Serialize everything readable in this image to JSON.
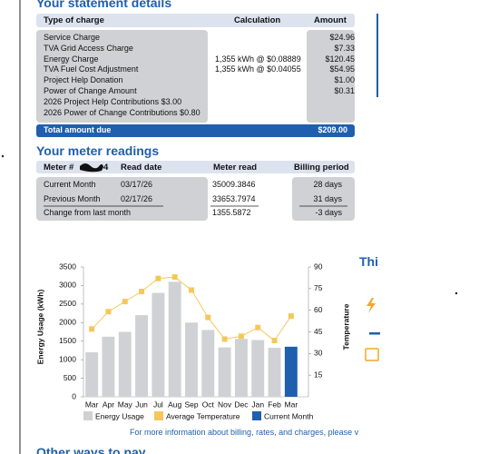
{
  "statement": {
    "title": "Your statement details",
    "headers": [
      "Type of charge",
      "Calculation",
      "Amount"
    ],
    "rows": [
      {
        "type": "Service Charge",
        "amount": "$24.96"
      },
      {
        "type": "TVA Grid Access Charge",
        "amount": "$7.33"
      },
      {
        "type": "Energy Charge",
        "calculation": "1,355 kWh @ $0.08889",
        "amount": "$120.45"
      },
      {
        "type": "TVA Fuel Cost Adjustment",
        "calculation": "1,355 kWh @ $0.04055",
        "amount": "$54.95"
      },
      {
        "type": "Project Help Donation",
        "amount": "$1.00"
      },
      {
        "type": "Power of Change Amount",
        "amount": "$0.31"
      },
      {
        "type": "2026 Project Help Contributions $3.00"
      },
      {
        "type": "2026 Power of Change Contributions $0.80"
      }
    ],
    "total": {
      "label": "Total amount due",
      "amount": "$209.00"
    }
  },
  "meter": {
    "title": "Your meter readings",
    "meter_label": "Meter #",
    "meter_suffix": "4",
    "headers": [
      "Read date",
      "Meter read",
      "Billing period"
    ],
    "rows": [
      {
        "label": "Current Month",
        "date": "03/17/26",
        "read": "35009.3846",
        "period": "28 days"
      },
      {
        "label": "Previous Month",
        "date": "02/17/26",
        "read": "33653.7974",
        "period": "31 days"
      },
      {
        "label": "Change from last month",
        "read": "1355.5872",
        "period": "-3 days"
      }
    ]
  },
  "chart_data": {
    "type": "bar",
    "categories": [
      "Mar",
      "Apr",
      "May",
      "Jun",
      "Jul",
      "Aug",
      "Sep",
      "Oct",
      "Nov",
      "Dec",
      "Jan",
      "Feb",
      "Mar"
    ],
    "series": [
      {
        "name": "Energy Usage",
        "color": "#d0d1d4",
        "values": [
          1200,
          1620,
          1750,
          2200,
          2800,
          3100,
          2000,
          1800,
          1330,
          1560,
          1530,
          1320,
          null
        ]
      },
      {
        "name": "Average Temperature",
        "type": "line",
        "axis": "y2",
        "color": "#f5c75b",
        "values": [
          47,
          59,
          66,
          73,
          82,
          83,
          74,
          55,
          40,
          42,
          48,
          39,
          56
        ]
      },
      {
        "name": "Current Month",
        "color": "#1f5fad",
        "values": [
          null,
          null,
          null,
          null,
          null,
          null,
          null,
          null,
          null,
          null,
          null,
          null,
          1350
        ]
      }
    ],
    "ylabel": "Energy Usage (kWh)",
    "y2label": "Temperature",
    "ylim": [
      0,
      3500
    ],
    "yticks": [
      0,
      500,
      1000,
      1500,
      2000,
      2500,
      3000,
      3500
    ],
    "y2lim": [
      0,
      90
    ],
    "y2ticks": [
      15,
      30,
      45,
      60,
      75,
      90
    ]
  },
  "side": {
    "title": "This"
  },
  "footer": {
    "note": "For more information about billing, rates, and charges, please v",
    "next_title": "Other ways to pay"
  }
}
